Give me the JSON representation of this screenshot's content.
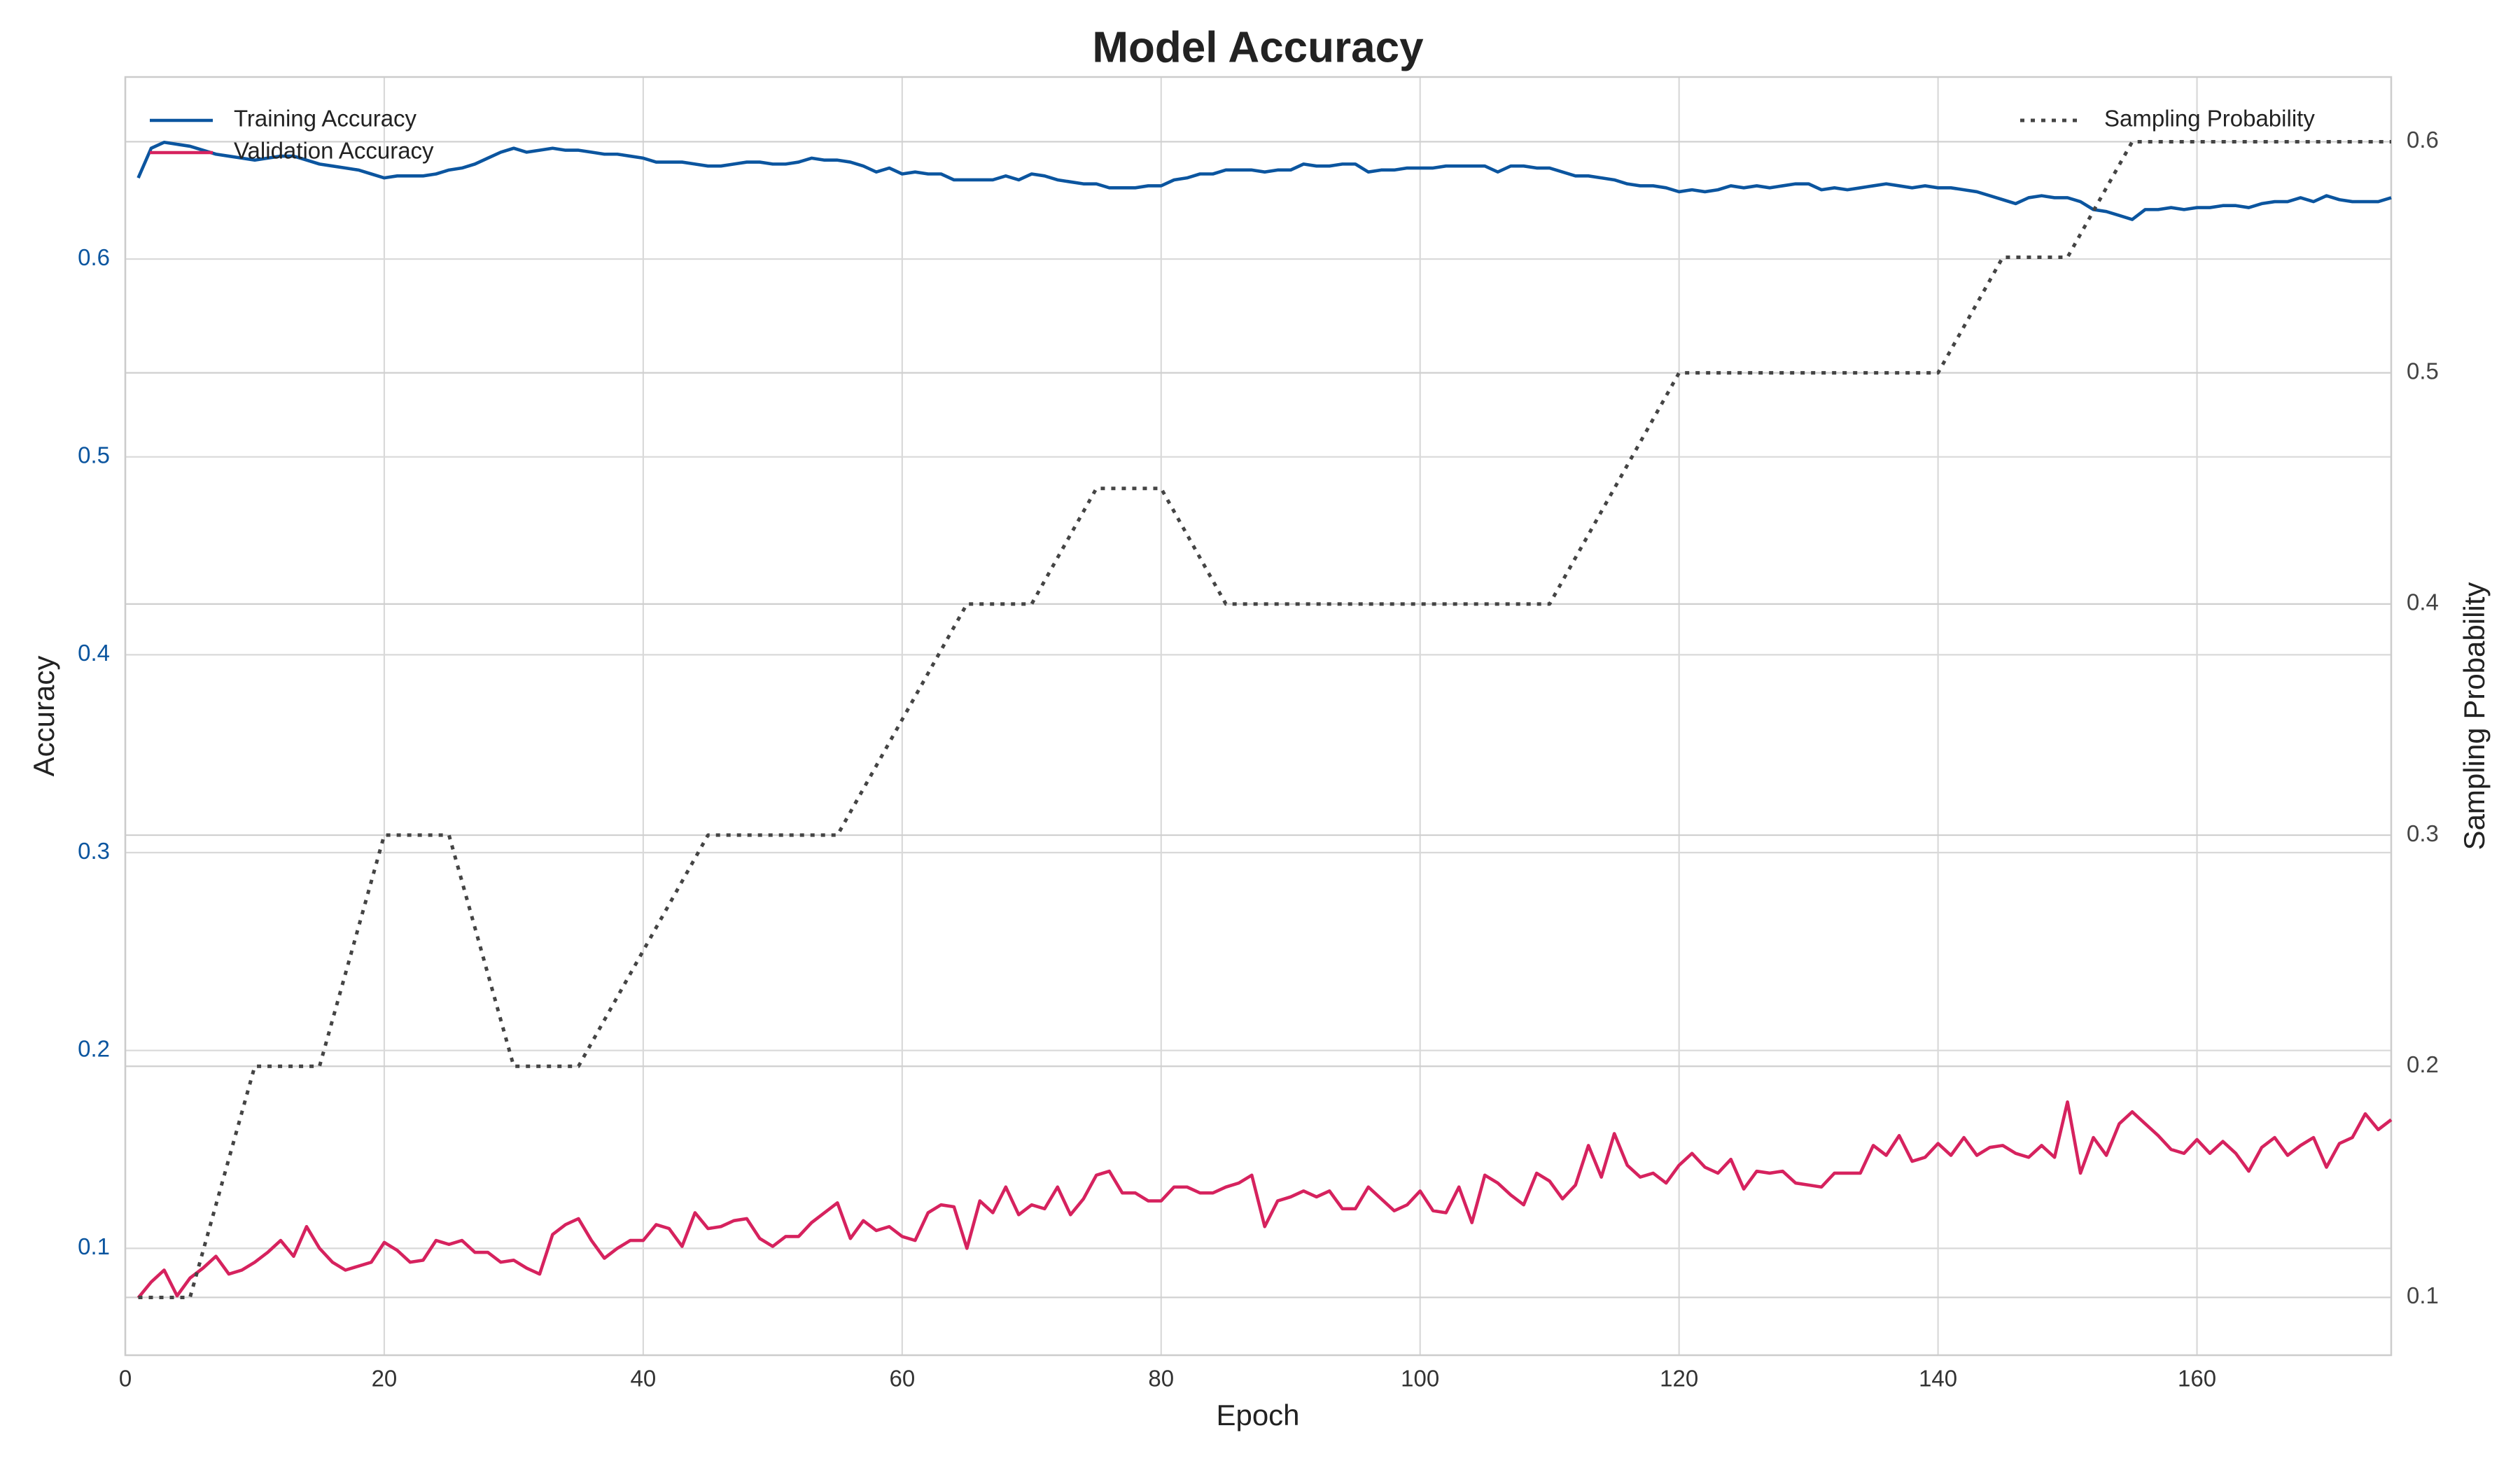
{
  "chart_data": {
    "type": "line",
    "title": "Model Accuracy",
    "x_label": "Epoch",
    "y_label": "Accuracy",
    "y2_label": "Sampling Probability",
    "xlim": [
      0,
      175
    ],
    "xticks": [
      0,
      20,
      40,
      60,
      80,
      100,
      120,
      140,
      160
    ],
    "ylim": [
      0.046,
      0.692
    ],
    "yticks": [
      0.1,
      0.2,
      0.3,
      0.4,
      0.5,
      0.6
    ],
    "y2lim": [
      0.075,
      0.628
    ],
    "y2ticks": [
      0.1,
      0.2,
      0.3,
      0.4,
      0.5,
      0.6
    ],
    "grid": true,
    "legend": "upper left",
    "legend2": "upper right",
    "x": [
      1,
      2,
      3,
      4,
      5,
      6,
      7,
      8,
      9,
      10,
      11,
      12,
      13,
      14,
      15,
      16,
      17,
      18,
      19,
      20,
      21,
      22,
      23,
      24,
      25,
      26,
      27,
      28,
      29,
      30,
      31,
      32,
      33,
      34,
      35,
      36,
      37,
      38,
      39,
      40,
      41,
      42,
      43,
      44,
      45,
      46,
      47,
      48,
      49,
      50,
      51,
      52,
      53,
      54,
      55,
      56,
      57,
      58,
      59,
      60,
      61,
      62,
      63,
      64,
      65,
      66,
      67,
      68,
      69,
      70,
      71,
      72,
      73,
      74,
      75,
      76,
      77,
      78,
      79,
      80,
      81,
      82,
      83,
      84,
      85,
      86,
      87,
      88,
      89,
      90,
      91,
      92,
      93,
      94,
      95,
      96,
      97,
      98,
      99,
      100,
      101,
      102,
      103,
      104,
      105,
      106,
      107,
      108,
      109,
      110,
      111,
      112,
      113,
      114,
      115,
      116,
      117,
      118,
      119,
      120,
      121,
      122,
      123,
      124,
      125,
      126,
      127,
      128,
      129,
      130,
      131,
      132,
      133,
      134,
      135,
      136,
      137,
      138,
      139,
      140,
      141,
      142,
      143,
      144,
      145,
      146,
      147,
      148,
      149,
      150,
      151,
      152,
      153,
      154,
      155,
      156,
      157,
      158,
      159,
      160,
      161,
      162,
      163,
      164,
      165,
      166,
      167,
      168,
      169,
      170,
      171,
      172,
      173,
      174,
      175
    ],
    "series": [
      {
        "name": "Training Accuracy",
        "color": "#0b559f",
        "style": "solid",
        "axis": "y",
        "values": [
          0.641,
          0.656,
          0.659,
          0.658,
          0.657,
          0.655,
          0.653,
          0.652,
          0.651,
          0.65,
          0.651,
          0.652,
          0.652,
          0.65,
          0.648,
          0.647,
          0.646,
          0.645,
          0.643,
          0.641,
          0.642,
          0.642,
          0.642,
          0.643,
          0.645,
          0.646,
          0.648,
          0.651,
          0.654,
          0.656,
          0.654,
          0.655,
          0.656,
          0.655,
          0.655,
          0.654,
          0.653,
          0.653,
          0.652,
          0.651,
          0.649,
          0.649,
          0.649,
          0.648,
          0.647,
          0.647,
          0.648,
          0.649,
          0.649,
          0.648,
          0.648,
          0.649,
          0.651,
          0.65,
          0.65,
          0.649,
          0.647,
          0.644,
          0.646,
          0.643,
          0.644,
          0.643,
          0.643,
          0.64,
          0.64,
          0.64,
          0.64,
          0.642,
          0.64,
          0.643,
          0.642,
          0.64,
          0.639,
          0.638,
          0.638,
          0.636,
          0.636,
          0.636,
          0.637,
          0.637,
          0.64,
          0.641,
          0.643,
          0.643,
          0.645,
          0.645,
          0.645,
          0.644,
          0.645,
          0.645,
          0.648,
          0.647,
          0.647,
          0.648,
          0.648,
          0.644,
          0.645,
          0.645,
          0.646,
          0.646,
          0.646,
          0.647,
          0.647,
          0.647,
          0.647,
          0.644,
          0.647,
          0.647,
          0.646,
          0.646,
          0.644,
          0.642,
          0.642,
          0.641,
          0.64,
          0.638,
          0.637,
          0.637,
          0.636,
          0.634,
          0.635,
          0.634,
          0.635,
          0.637,
          0.636,
          0.637,
          0.636,
          0.637,
          0.638,
          0.638,
          0.635,
          0.636,
          0.635,
          0.636,
          0.637,
          0.638,
          0.637,
          0.636,
          0.637,
          0.636,
          0.636,
          0.635,
          0.634,
          0.632,
          0.63,
          0.628,
          0.631,
          0.632,
          0.631,
          0.631,
          0.629,
          0.625,
          0.624,
          0.622,
          0.62,
          0.625,
          0.625,
          0.626,
          0.625,
          0.626,
          0.626,
          0.627,
          0.627,
          0.626,
          0.628,
          0.629,
          0.629,
          0.631,
          0.629,
          0.632,
          0.63,
          0.629,
          0.629,
          0.629,
          0.631
        ]
      },
      {
        "name": "Validation Accuracy",
        "color": "#d6225e",
        "style": "solid",
        "axis": "y",
        "values": [
          0.075,
          0.083,
          0.089,
          0.076,
          0.085,
          0.09,
          0.096,
          0.087,
          0.089,
          0.093,
          0.098,
          0.104,
          0.096,
          0.111,
          0.1,
          0.093,
          0.089,
          0.091,
          0.093,
          0.103,
          0.099,
          0.093,
          0.094,
          0.104,
          0.102,
          0.104,
          0.098,
          0.098,
          0.093,
          0.094,
          0.09,
          0.087,
          0.107,
          0.112,
          0.115,
          0.104,
          0.095,
          0.1,
          0.104,
          0.104,
          0.112,
          0.11,
          0.101,
          0.118,
          0.11,
          0.111,
          0.114,
          0.115,
          0.105,
          0.101,
          0.106,
          0.106,
          0.113,
          0.118,
          0.123,
          0.105,
          0.114,
          0.109,
          0.111,
          0.106,
          0.104,
          0.118,
          0.122,
          0.121,
          0.1,
          0.124,
          0.118,
          0.131,
          0.117,
          0.122,
          0.12,
          0.131,
          0.117,
          0.125,
          0.137,
          0.139,
          0.128,
          0.128,
          0.124,
          0.124,
          0.131,
          0.131,
          0.128,
          0.128,
          0.131,
          0.133,
          0.137,
          0.111,
          0.124,
          0.126,
          0.129,
          0.126,
          0.129,
          0.12,
          0.12,
          0.131,
          0.125,
          0.119,
          0.122,
          0.129,
          0.119,
          0.118,
          0.131,
          0.113,
          0.137,
          0.133,
          0.127,
          0.122,
          0.138,
          0.134,
          0.125,
          0.132,
          0.152,
          0.136,
          0.158,
          0.142,
          0.136,
          0.138,
          0.133,
          0.142,
          0.148,
          0.141,
          0.138,
          0.145,
          0.13,
          0.139,
          0.138,
          0.139,
          0.133,
          0.132,
          0.131,
          0.138,
          0.138,
          0.138,
          0.152,
          0.147,
          0.157,
          0.144,
          0.146,
          0.153,
          0.147,
          0.156,
          0.147,
          0.151,
          0.152,
          0.148,
          0.146,
          0.152,
          0.146,
          0.174,
          0.138,
          0.156,
          0.147,
          0.163,
          0.169,
          0.163,
          0.157,
          0.15,
          0.148,
          0.155,
          0.148,
          0.154,
          0.148,
          0.139,
          0.151,
          0.156,
          0.147,
          0.152,
          0.156,
          0.141,
          0.153,
          0.156,
          0.168,
          0.16,
          0.165
        ]
      },
      {
        "name": "Sampling Probability",
        "color": "#444444",
        "style": "dotted",
        "axis": "y2",
        "values": [
          0.1,
          0.1,
          0.1,
          0.1,
          0.1,
          0.12,
          0.14,
          0.16,
          0.18,
          0.2,
          0.2,
          0.2,
          0.2,
          0.2,
          0.2,
          0.22,
          0.24,
          0.26,
          0.28,
          0.3,
          0.3,
          0.3,
          0.3,
          0.3,
          0.3,
          0.28,
          0.26,
          0.24,
          0.22,
          0.2,
          0.2,
          0.2,
          0.2,
          0.2,
          0.2,
          0.21,
          0.22,
          0.23,
          0.24,
          0.25,
          0.26,
          0.27,
          0.28,
          0.29,
          0.3,
          0.3,
          0.3,
          0.3,
          0.3,
          0.3,
          0.3,
          0.3,
          0.3,
          0.3,
          0.3,
          0.31,
          0.32,
          0.33,
          0.34,
          0.35,
          0.36,
          0.37,
          0.38,
          0.39,
          0.4,
          0.4,
          0.4,
          0.4,
          0.4,
          0.4,
          0.41,
          0.42,
          0.43,
          0.44,
          0.45,
          0.45,
          0.45,
          0.45,
          0.45,
          0.45,
          0.44,
          0.43,
          0.42,
          0.41,
          0.4,
          0.4,
          0.4,
          0.4,
          0.4,
          0.4,
          0.4,
          0.4,
          0.4,
          0.4,
          0.4,
          0.4,
          0.4,
          0.4,
          0.4,
          0.4,
          0.4,
          0.4,
          0.4,
          0.4,
          0.4,
          0.4,
          0.4,
          0.4,
          0.4,
          0.4,
          0.41,
          0.42,
          0.43,
          0.44,
          0.45,
          0.46,
          0.47,
          0.48,
          0.49,
          0.5,
          0.5,
          0.5,
          0.5,
          0.5,
          0.5,
          0.5,
          0.5,
          0.5,
          0.5,
          0.5,
          0.5,
          0.5,
          0.5,
          0.5,
          0.5,
          0.5,
          0.5,
          0.5,
          0.5,
          0.5,
          0.51,
          0.52,
          0.53,
          0.54,
          0.55,
          0.55,
          0.55,
          0.55,
          0.55,
          0.55,
          0.56,
          0.57,
          0.58,
          0.59,
          0.6,
          0.6,
          0.6,
          0.6,
          0.6,
          0.6,
          0.6,
          0.6,
          0.6,
          0.6,
          0.6,
          0.6,
          0.6,
          0.6,
          0.6,
          0.6,
          0.6,
          0.6,
          0.6,
          0.6,
          0.6
        ]
      }
    ]
  }
}
